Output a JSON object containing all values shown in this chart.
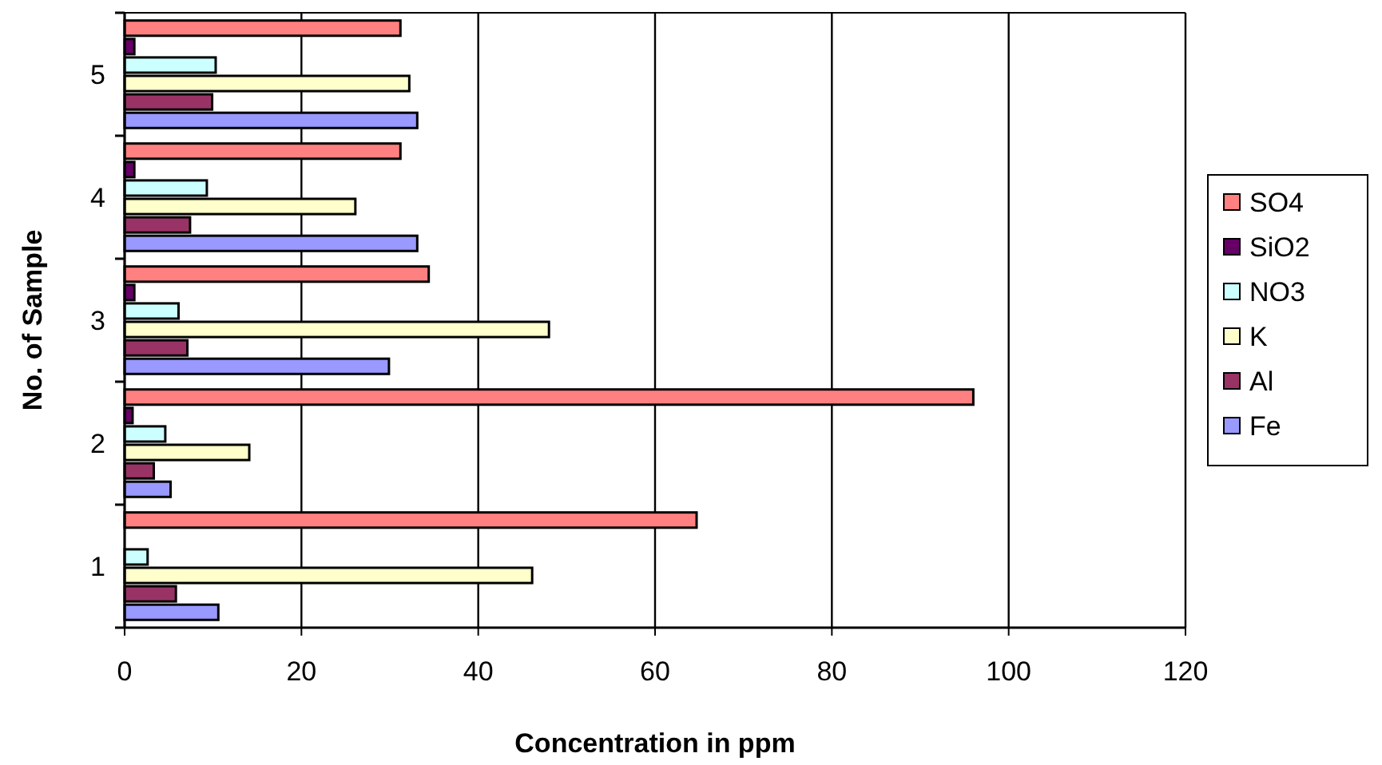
{
  "chart_data": {
    "type": "bar",
    "orientation": "horizontal",
    "xlabel": "Concentration in ppm",
    "ylabel": "No. of Sample",
    "categories": [
      "5",
      "4",
      "3",
      "2",
      "1"
    ],
    "series": [
      {
        "name": "SO4",
        "color": "#ff8080",
        "values": [
          31.2,
          31.2,
          34.4,
          96,
          64.7
        ]
      },
      {
        "name": "SiO2",
        "color": "#660066",
        "values": [
          1.1,
          1.1,
          1.1,
          0.9,
          0
        ]
      },
      {
        "name": "NO3",
        "color": "#ccffff",
        "values": [
          10.3,
          9.3,
          6.1,
          4.6,
          2.6
        ]
      },
      {
        "name": "K",
        "color": "#ffffcc",
        "values": [
          32.2,
          26.1,
          48,
          14.1,
          46.1
        ]
      },
      {
        "name": "Al",
        "color": "#993366",
        "values": [
          9.9,
          7.4,
          7.1,
          3.3,
          5.8
        ]
      },
      {
        "name": "Fe",
        "color": "#9999ff",
        "values": [
          33.1,
          33.1,
          29.9,
          5.2,
          10.6
        ]
      }
    ],
    "xlim": [
      0,
      120
    ],
    "xticks": [
      0,
      20,
      40,
      60,
      80,
      100,
      120
    ],
    "grid": "x",
    "legend": "right"
  }
}
